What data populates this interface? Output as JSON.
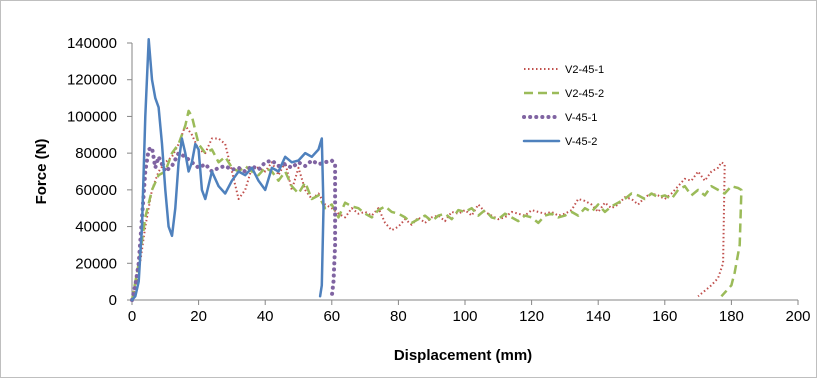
{
  "chart_data": {
    "type": "line",
    "title": "",
    "xlabel": "Displacement (mm)",
    "ylabel": "Force (N)",
    "xlim": [
      0,
      200
    ],
    "ylim": [
      0,
      140000
    ],
    "xticks": [
      0,
      20,
      40,
      60,
      80,
      100,
      120,
      140,
      160,
      180,
      200
    ],
    "yticks": [
      0,
      20000,
      40000,
      60000,
      80000,
      100000,
      120000,
      140000
    ],
    "grid": false,
    "legend_position": "right",
    "series": [
      {
        "name": "V2-45-1",
        "color": "#c0504d",
        "style": "dotted",
        "points": [
          [
            0,
            0
          ],
          [
            2,
            15000
          ],
          [
            4,
            40000
          ],
          [
            6,
            60000
          ],
          [
            8,
            70000
          ],
          [
            10,
            75000
          ],
          [
            12,
            78000
          ],
          [
            14,
            85000
          ],
          [
            16,
            95000
          ],
          [
            18,
            90000
          ],
          [
            20,
            82000
          ],
          [
            22,
            80000
          ],
          [
            24,
            88000
          ],
          [
            26,
            88000
          ],
          [
            28,
            85000
          ],
          [
            30,
            70000
          ],
          [
            32,
            55000
          ],
          [
            34,
            60000
          ],
          [
            36,
            72000
          ],
          [
            38,
            72000
          ],
          [
            40,
            70000
          ],
          [
            42,
            75000
          ],
          [
            44,
            68000
          ],
          [
            46,
            75000
          ],
          [
            48,
            60000
          ],
          [
            50,
            72000
          ],
          [
            52,
            60000
          ],
          [
            54,
            55000
          ],
          [
            56,
            58000
          ],
          [
            58,
            52000
          ],
          [
            60,
            50000
          ],
          [
            62,
            47000
          ],
          [
            64,
            45000
          ],
          [
            66,
            50000
          ],
          [
            68,
            47000
          ],
          [
            70,
            48000
          ],
          [
            72,
            46000
          ],
          [
            74,
            50000
          ],
          [
            76,
            42000
          ],
          [
            78,
            38000
          ],
          [
            80,
            40000
          ],
          [
            82,
            44000
          ],
          [
            84,
            41000
          ],
          [
            86,
            45000
          ],
          [
            88,
            42000
          ],
          [
            90,
            45000
          ],
          [
            92,
            46000
          ],
          [
            94,
            43000
          ],
          [
            96,
            48000
          ],
          [
            98,
            47000
          ],
          [
            100,
            49000
          ],
          [
            102,
            46000
          ],
          [
            104,
            52000
          ],
          [
            106,
            48000
          ],
          [
            108,
            46000
          ],
          [
            110,
            44000
          ],
          [
            112,
            45000
          ],
          [
            114,
            48000
          ],
          [
            116,
            47000
          ],
          [
            118,
            46000
          ],
          [
            120,
            49000
          ],
          [
            122,
            48000
          ],
          [
            124,
            47000
          ],
          [
            126,
            48000
          ],
          [
            128,
            46000
          ],
          [
            130,
            47000
          ],
          [
            132,
            49000
          ],
          [
            134,
            55000
          ],
          [
            136,
            54000
          ],
          [
            138,
            52000
          ],
          [
            140,
            48000
          ],
          [
            142,
            53000
          ],
          [
            144,
            50000
          ],
          [
            146,
            52000
          ],
          [
            148,
            56000
          ],
          [
            150,
            55000
          ],
          [
            152,
            52000
          ],
          [
            154,
            56000
          ],
          [
            156,
            58000
          ],
          [
            158,
            57000
          ],
          [
            160,
            55000
          ],
          [
            162,
            58000
          ],
          [
            164,
            62000
          ],
          [
            166,
            66000
          ],
          [
            168,
            65000
          ],
          [
            170,
            70000
          ],
          [
            172,
            65000
          ],
          [
            174,
            70000
          ],
          [
            176,
            72000
          ],
          [
            177,
            75000
          ],
          [
            178,
            74000
          ],
          [
            177.5,
            20000
          ],
          [
            176,
            12000
          ],
          [
            174,
            8000
          ],
          [
            172,
            5000
          ],
          [
            170,
            2000
          ]
        ]
      },
      {
        "name": "V2-45-2",
        "color": "#9bbb59",
        "style": "dashed",
        "points": [
          [
            0,
            0
          ],
          [
            2,
            20000
          ],
          [
            4,
            45000
          ],
          [
            6,
            60000
          ],
          [
            8,
            68000
          ],
          [
            10,
            70000
          ],
          [
            12,
            80000
          ],
          [
            14,
            85000
          ],
          [
            16,
            95000
          ],
          [
            17,
            103000
          ],
          [
            18,
            100000
          ],
          [
            20,
            85000
          ],
          [
            22,
            80000
          ],
          [
            24,
            82000
          ],
          [
            26,
            75000
          ],
          [
            28,
            78000
          ],
          [
            30,
            72000
          ],
          [
            32,
            70000
          ],
          [
            34,
            73000
          ],
          [
            36,
            70000
          ],
          [
            38,
            68000
          ],
          [
            40,
            72000
          ],
          [
            42,
            70000
          ],
          [
            44,
            65000
          ],
          [
            46,
            70000
          ],
          [
            48,
            62000
          ],
          [
            50,
            58000
          ],
          [
            52,
            64000
          ],
          [
            54,
            55000
          ],
          [
            56,
            57000
          ],
          [
            58,
            50000
          ],
          [
            60,
            52000
          ],
          [
            62,
            45000
          ],
          [
            64,
            53000
          ],
          [
            66,
            51000
          ],
          [
            68,
            50000
          ],
          [
            70,
            47000
          ],
          [
            72,
            45000
          ],
          [
            74,
            49000
          ],
          [
            76,
            51000
          ],
          [
            78,
            48000
          ],
          [
            80,
            47000
          ],
          [
            82,
            45000
          ],
          [
            84,
            42000
          ],
          [
            86,
            44000
          ],
          [
            88,
            46000
          ],
          [
            90,
            43000
          ],
          [
            92,
            46000
          ],
          [
            94,
            47000
          ],
          [
            96,
            44000
          ],
          [
            98,
            49000
          ],
          [
            100,
            48000
          ],
          [
            102,
            50000
          ],
          [
            104,
            46000
          ],
          [
            106,
            49000
          ],
          [
            108,
            45000
          ],
          [
            110,
            44000
          ],
          [
            112,
            47000
          ],
          [
            114,
            45000
          ],
          [
            116,
            43000
          ],
          [
            118,
            46000
          ],
          [
            120,
            45000
          ],
          [
            122,
            42000
          ],
          [
            124,
            46000
          ],
          [
            126,
            47000
          ],
          [
            128,
            45000
          ],
          [
            130,
            46000
          ],
          [
            132,
            48000
          ],
          [
            134,
            46000
          ],
          [
            136,
            50000
          ],
          [
            138,
            48000
          ],
          [
            140,
            52000
          ],
          [
            142,
            48000
          ],
          [
            144,
            51000
          ],
          [
            146,
            53000
          ],
          [
            148,
            55000
          ],
          [
            150,
            58000
          ],
          [
            152,
            57000
          ],
          [
            154,
            55000
          ],
          [
            156,
            58000
          ],
          [
            158,
            56000
          ],
          [
            160,
            57000
          ],
          [
            162,
            55000
          ],
          [
            164,
            60000
          ],
          [
            166,
            62000
          ],
          [
            168,
            57000
          ],
          [
            170,
            60000
          ],
          [
            172,
            57000
          ],
          [
            174,
            62000
          ],
          [
            176,
            60000
          ],
          [
            178,
            58000
          ],
          [
            180,
            62000
          ],
          [
            182,
            61000
          ],
          [
            183,
            60000
          ],
          [
            182.5,
            30000
          ],
          [
            181,
            15000
          ],
          [
            180,
            8000
          ],
          [
            178,
            4000
          ],
          [
            177,
            2000
          ]
        ]
      },
      {
        "name": "V-45-1",
        "color": "#8064a2",
        "style": "heavy-dotted",
        "points": [
          [
            0,
            0
          ],
          [
            1,
            8000
          ],
          [
            2,
            20000
          ],
          [
            3,
            45000
          ],
          [
            4,
            70000
          ],
          [
            5,
            82000
          ],
          [
            6,
            83000
          ],
          [
            7,
            72000
          ],
          [
            8,
            78000
          ],
          [
            10,
            70000
          ],
          [
            12,
            73000
          ],
          [
            14,
            80000
          ],
          [
            16,
            78000
          ],
          [
            18,
            75000
          ],
          [
            20,
            72000
          ],
          [
            22,
            74000
          ],
          [
            24,
            70000
          ],
          [
            26,
            72000
          ],
          [
            28,
            73000
          ],
          [
            30,
            71000
          ],
          [
            32,
            72000
          ],
          [
            34,
            70000
          ],
          [
            36,
            73000
          ],
          [
            38,
            71000
          ],
          [
            40,
            75000
          ],
          [
            42,
            76000
          ],
          [
            44,
            73000
          ],
          [
            46,
            74000
          ],
          [
            48,
            72000
          ],
          [
            50,
            75000
          ],
          [
            52,
            73000
          ],
          [
            54,
            76000
          ],
          [
            56,
            74000
          ],
          [
            58,
            75000
          ],
          [
            60,
            76000
          ],
          [
            61,
            74000
          ],
          [
            61,
            30000
          ],
          [
            60.5,
            10000
          ],
          [
            60,
            2000
          ]
        ]
      },
      {
        "name": "V-45-2",
        "color": "#4f81bd",
        "style": "solid",
        "points": [
          [
            0,
            0
          ],
          [
            1,
            2000
          ],
          [
            2,
            10000
          ],
          [
            3,
            40000
          ],
          [
            4,
            100000
          ],
          [
            5,
            142000
          ],
          [
            6,
            120000
          ],
          [
            7,
            110000
          ],
          [
            8,
            105000
          ],
          [
            9,
            85000
          ],
          [
            10,
            60000
          ],
          [
            11,
            40000
          ],
          [
            12,
            35000
          ],
          [
            13,
            50000
          ],
          [
            14,
            75000
          ],
          [
            15,
            88000
          ],
          [
            16,
            80000
          ],
          [
            17,
            70000
          ],
          [
            18,
            75000
          ],
          [
            19,
            85000
          ],
          [
            20,
            82000
          ],
          [
            21,
            60000
          ],
          [
            22,
            55000
          ],
          [
            24,
            70000
          ],
          [
            26,
            62000
          ],
          [
            28,
            58000
          ],
          [
            30,
            65000
          ],
          [
            32,
            70000
          ],
          [
            34,
            68000
          ],
          [
            36,
            72000
          ],
          [
            38,
            65000
          ],
          [
            40,
            60000
          ],
          [
            42,
            72000
          ],
          [
            44,
            70000
          ],
          [
            46,
            78000
          ],
          [
            48,
            75000
          ],
          [
            50,
            76000
          ],
          [
            52,
            80000
          ],
          [
            54,
            78000
          ],
          [
            56,
            82000
          ],
          [
            57,
            88000
          ],
          [
            57.5,
            50000
          ],
          [
            57,
            8000
          ],
          [
            56.5,
            2000
          ]
        ]
      }
    ]
  }
}
